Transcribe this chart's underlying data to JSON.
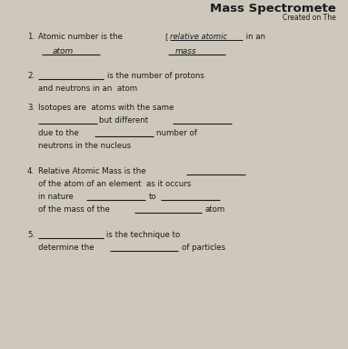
{
  "title": "Mass Spectromete",
  "subtitle": "Created on The",
  "bg_color": "#cec8bc",
  "text_color": "#1a1a1a",
  "title_fontsize": 9.5,
  "subtitle_fontsize": 5.5,
  "body_fontsize": 6.2,
  "handwriting_fontsize": 6.5,
  "items": [
    {
      "num": "1.",
      "lines": [
        {
          "type": "mixed",
          "parts": [
            {
              "t": "Atomic number is the ",
              "style": "normal"
            },
            {
              "t": "[",
              "style": "normal"
            },
            {
              "t": "relative atomic",
              "style": "handwrite",
              "underline": true
            },
            {
              "t": " in an",
              "style": "normal"
            }
          ]
        },
        {
          "type": "blanks_row",
          "left": {
            "t": "atom",
            "style": "handwrite"
          },
          "right": {
            "t": "mass",
            "style": "handwrite"
          }
        }
      ]
    },
    {
      "num": "2.",
      "lines": [
        {
          "type": "mixed",
          "parts": [
            {
              "t": "____________",
              "style": "underline_blank"
            },
            {
              "t": " is the number of protons",
              "style": "normal"
            }
          ]
        },
        {
          "type": "text",
          "t": "and neutrons in an  atom",
          "style": "normal"
        }
      ]
    },
    {
      "num": "3.",
      "lines": [
        {
          "type": "text",
          "t": "Isotopes are  atoms with the same",
          "style": "normal"
        },
        {
          "type": "mixed",
          "parts": [
            {
              "t": "____________",
              "style": "underline_blank"
            },
            {
              "t": "  but different  ",
              "style": "normal"
            },
            {
              "t": "____________",
              "style": "underline_blank"
            }
          ]
        },
        {
          "type": "mixed",
          "parts": [
            {
              "t": "due to the  ",
              "style": "normal"
            },
            {
              "t": "____________",
              "style": "underline_blank"
            },
            {
              "t": "  number of",
              "style": "normal"
            }
          ]
        },
        {
          "type": "text",
          "t": "neutrons in the nucleus",
          "style": "normal"
        }
      ]
    },
    {
      "num": "4.",
      "lines": [
        {
          "type": "mixed",
          "parts": [
            {
              "t": "Relative Atomic Mass is the  ",
              "style": "normal"
            },
            {
              "t": "____________",
              "style": "underline_blank"
            }
          ]
        },
        {
          "type": "text",
          "t": "of the atom of an element  as it occurs",
          "style": "normal"
        },
        {
          "type": "mixed",
          "parts": [
            {
              "t": "in nature  ",
              "style": "normal"
            },
            {
              "t": "____________",
              "style": "underline_blank"
            },
            {
              "t": "  to  ",
              "style": "normal"
            },
            {
              "t": "____________",
              "style": "underline_blank"
            }
          ]
        },
        {
          "type": "mixed",
          "parts": [
            {
              "t": "of the mass of the  ",
              "style": "normal"
            },
            {
              "t": "____________",
              "style": "underline_blank"
            },
            {
              "t": "  atom",
              "style": "normal"
            }
          ]
        }
      ]
    },
    {
      "num": "5.",
      "lines": [
        {
          "type": "mixed",
          "parts": [
            {
              "t": "____________",
              "style": "underline_blank"
            },
            {
              "t": "  is the technique to",
              "style": "normal"
            }
          ]
        },
        {
          "type": "mixed",
          "parts": [
            {
              "t": "determine the  ",
              "style": "normal"
            },
            {
              "t": "____________",
              "style": "underline_blank"
            },
            {
              "t": "  of particles",
              "style": "normal"
            }
          ]
        }
      ]
    }
  ]
}
